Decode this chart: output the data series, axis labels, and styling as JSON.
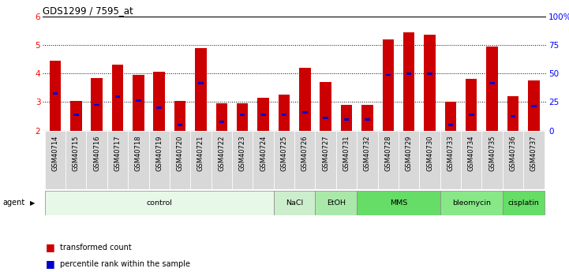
{
  "title": "GDS1299 / 7595_at",
  "samples": [
    "GSM40714",
    "GSM40715",
    "GSM40716",
    "GSM40717",
    "GSM40718",
    "GSM40719",
    "GSM40720",
    "GSM40721",
    "GSM40722",
    "GSM40723",
    "GSM40724",
    "GSM40725",
    "GSM40726",
    "GSM40727",
    "GSM40731",
    "GSM40732",
    "GSM40728",
    "GSM40729",
    "GSM40730",
    "GSM40733",
    "GSM40734",
    "GSM40735",
    "GSM40736",
    "GSM40737"
  ],
  "transformed_count": [
    4.45,
    3.05,
    3.85,
    4.3,
    3.95,
    4.05,
    3.05,
    4.88,
    2.95,
    2.95,
    3.15,
    3.25,
    4.2,
    3.7,
    2.9,
    2.9,
    5.2,
    5.45,
    5.35,
    3.0,
    3.8,
    4.95,
    3.2,
    3.75
  ],
  "percentile_rank": [
    3.3,
    2.55,
    2.9,
    3.2,
    3.05,
    2.8,
    2.2,
    3.65,
    2.3,
    2.55,
    2.55,
    2.55,
    2.65,
    2.45,
    2.4,
    2.4,
    3.95,
    4.0,
    4.0,
    2.2,
    2.55,
    3.65,
    2.5,
    2.85
  ],
  "agent_groups": [
    {
      "label": "control",
      "start": 0,
      "end": 11,
      "color": "#e8f8e8"
    },
    {
      "label": "NaCl",
      "start": 11,
      "end": 13,
      "color": "#cceecc"
    },
    {
      "label": "EtOH",
      "start": 13,
      "end": 15,
      "color": "#aae8aa"
    },
    {
      "label": "MMS",
      "start": 15,
      "end": 19,
      "color": "#66dd66"
    },
    {
      "label": "bleomycin",
      "start": 19,
      "end": 22,
      "color": "#88e888"
    },
    {
      "label": "cisplatin",
      "start": 22,
      "end": 24,
      "color": "#66dd66"
    }
  ],
  "ylim_left": [
    2,
    6
  ],
  "ylim_right": [
    0,
    100
  ],
  "yticks_left": [
    2,
    3,
    4,
    5,
    6
  ],
  "yticks_right": [
    0,
    25,
    50,
    75,
    100
  ],
  "bar_color": "#cc0000",
  "percentile_color": "#0000cc",
  "bar_width": 0.55,
  "background_color": "#ffffff",
  "plot_bg_color": "#ffffff",
  "tick_label_bg": "#d8d8d8"
}
